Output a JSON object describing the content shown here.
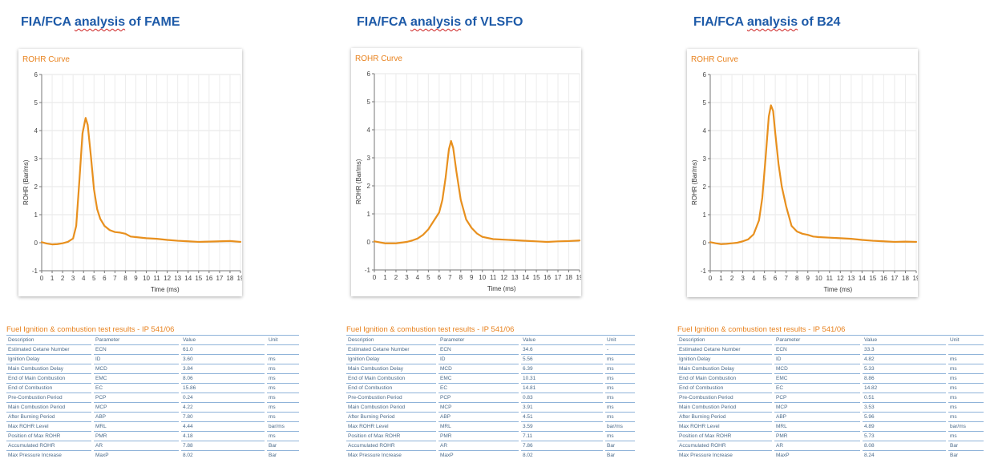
{
  "panels": [
    {
      "heading": {
        "pre": "FIA/FCA ",
        "squiggle": "analysis",
        "post": " of FAME"
      }
    },
    {
      "heading": {
        "pre": "FIA/FCA ",
        "squiggle": "analysis",
        "post": " of VLSFO"
      }
    },
    {
      "heading": {
        "pre": "FIA/FCA ",
        "squiggle": "analysis",
        "post": " of B24"
      }
    }
  ],
  "colors": {
    "curve": "#e8901e",
    "title": "#e8821e",
    "heading": "#1d5aa8",
    "table_text": "#4a6a8a",
    "table_rule": "#8fb3d9"
  },
  "chart_data": [
    {
      "type": "line",
      "title": "ROHR Curve",
      "xlabel": "Time (ms)",
      "ylabel": "ROHR (Bar/ms)",
      "xlim": [
        0,
        19
      ],
      "ylim": [
        -1,
        6
      ],
      "xticks": [
        "0",
        "1",
        "2",
        "3",
        "4",
        "5",
        "6",
        "7",
        "8",
        "9",
        "10",
        "11",
        "12",
        "13",
        "14",
        "15",
        "16",
        "17",
        "18",
        "19"
      ],
      "yticks": [
        "-1",
        "0",
        "1",
        "2",
        "3",
        "4",
        "5",
        "6"
      ],
      "grid": true,
      "x": [
        0,
        0.5,
        1,
        1.5,
        2,
        2.5,
        3,
        3.3,
        3.6,
        3.9,
        4.2,
        4.4,
        4.7,
        5,
        5.3,
        5.6,
        6,
        6.5,
        7,
        7.5,
        8,
        8.5,
        9,
        10,
        11,
        12,
        13,
        14,
        15,
        16,
        17,
        18,
        19
      ],
      "y": [
        0.02,
        -0.03,
        -0.06,
        -0.05,
        -0.02,
        0.03,
        0.15,
        0.6,
        2.2,
        3.9,
        4.45,
        4.2,
        3.1,
        1.9,
        1.2,
        0.85,
        0.6,
        0.45,
        0.38,
        0.36,
        0.32,
        0.22,
        0.2,
        0.16,
        0.14,
        0.1,
        0.07,
        0.05,
        0.03,
        0.04,
        0.05,
        0.06,
        0.03
      ]
    },
    {
      "type": "line",
      "title": "ROHR Curve",
      "xlabel": "Time (ms)",
      "ylabel": "ROHR (Bar/ms)",
      "xlim": [
        0,
        19
      ],
      "ylim": [
        -1,
        6
      ],
      "xticks": [
        "0",
        "1",
        "2",
        "3",
        "4",
        "5",
        "6",
        "7",
        "8",
        "9",
        "10",
        "11",
        "12",
        "13",
        "14",
        "15",
        "16",
        "17",
        "18",
        "19"
      ],
      "yticks": [
        "-1",
        "0",
        "1",
        "2",
        "3",
        "4",
        "5",
        "6"
      ],
      "grid": true,
      "x": [
        0,
        1,
        2,
        3,
        3.5,
        4,
        4.5,
        5,
        5.5,
        6,
        6.3,
        6.6,
        6.9,
        7.1,
        7.3,
        7.6,
        8,
        8.5,
        9,
        9.5,
        10,
        11,
        12,
        13,
        14,
        15,
        16,
        17,
        18,
        19
      ],
      "y": [
        0.02,
        -0.05,
        -0.05,
        0.0,
        0.05,
        0.12,
        0.25,
        0.45,
        0.75,
        1.05,
        1.5,
        2.3,
        3.3,
        3.6,
        3.35,
        2.5,
        1.5,
        0.8,
        0.5,
        0.3,
        0.18,
        0.1,
        0.08,
        0.06,
        0.04,
        0.02,
        0.0,
        0.02,
        0.03,
        0.05
      ]
    },
    {
      "type": "line",
      "title": "ROHR Curve",
      "xlabel": "Time (ms)",
      "ylabel": "ROHR (Bar/ms)",
      "xlim": [
        0,
        19
      ],
      "ylim": [
        -1,
        6
      ],
      "xticks": [
        "0",
        "1",
        "2",
        "3",
        "4",
        "5",
        "6",
        "7",
        "8",
        "9",
        "10",
        "11",
        "12",
        "13",
        "14",
        "15",
        "16",
        "17",
        "18",
        "19"
      ],
      "yticks": [
        "-1",
        "0",
        "1",
        "2",
        "3",
        "4",
        "5",
        "6"
      ],
      "grid": true,
      "x": [
        0,
        0.5,
        1,
        1.5,
        2,
        2.5,
        3,
        3.5,
        4,
        4.5,
        4.8,
        5.1,
        5.4,
        5.6,
        5.8,
        6,
        6.3,
        6.6,
        7,
        7.5,
        8,
        8.5,
        9,
        9.5,
        10,
        11,
        12,
        13,
        14,
        15,
        16,
        17,
        18,
        19
      ],
      "y": [
        0.02,
        -0.02,
        -0.05,
        -0.04,
        -0.02,
        0.0,
        0.05,
        0.12,
        0.3,
        0.8,
        1.6,
        3.0,
        4.5,
        4.9,
        4.7,
        3.9,
        2.8,
        2.0,
        1.3,
        0.6,
        0.4,
        0.32,
        0.28,
        0.22,
        0.2,
        0.18,
        0.16,
        0.14,
        0.1,
        0.07,
        0.05,
        0.03,
        0.04,
        0.03
      ]
    }
  ],
  "tables": [
    {
      "title": "Fuel Ignition & combustion test results - IP 541/06",
      "headers": [
        "Description",
        "Parameter",
        "Value",
        "Unit"
      ],
      "rows": [
        [
          "Estimated Cetane Number",
          "ECN",
          "61.0",
          ""
        ],
        [
          "Ignition Delay",
          "ID",
          "3.60",
          "ms"
        ],
        [
          "Main Combustion Delay",
          "MCD",
          "3.84",
          "ms"
        ],
        [
          "End of Main Combustion",
          "EMC",
          "8.06",
          "ms"
        ],
        [
          "End of Combustion",
          "EC",
          "15.86",
          "ms"
        ],
        [
          "Pre-Combustion Period",
          "PCP",
          "0.24",
          "ms"
        ],
        [
          "Main Combustion Period",
          "MCP",
          "4.22",
          "ms"
        ],
        [
          "After Burning Period",
          "ABP",
          "7.80",
          "ms"
        ],
        [
          "Max ROHR Level",
          "MRL",
          "4.44",
          "bar/ms"
        ],
        [
          "Position of Max ROHR",
          "PMR",
          "4.18",
          "ms"
        ],
        [
          "Accumulated ROHR",
          "AR",
          "7.88",
          "Bar"
        ],
        [
          "Max Pressure Increase",
          "MaxP",
          "8.02",
          "Bar"
        ]
      ]
    },
    {
      "title": "Fuel Ignition & combustion test results - IP 541/06",
      "headers": [
        "Description",
        "Parameter",
        "Value",
        "Unit"
      ],
      "rows": [
        [
          "Estimated Cetane Number",
          "ECN",
          "34.6",
          "-"
        ],
        [
          "Ignition Delay",
          "ID",
          "5.56",
          "ms"
        ],
        [
          "Main Combustion Delay",
          "MCD",
          "6.39",
          "ms"
        ],
        [
          "End of Main Combustion",
          "EMC",
          "10.31",
          "ms"
        ],
        [
          "End of Combustion",
          "EC",
          "14.81",
          "ms"
        ],
        [
          "Pre-Combustion Period",
          "PCP",
          "0.83",
          "ms"
        ],
        [
          "Main Combustion Period",
          "MCP",
          "3.91",
          "ms"
        ],
        [
          "After Burning Period",
          "ABP",
          "4.51",
          "ms"
        ],
        [
          "Max ROHR Level",
          "MRL",
          "3.59",
          "bar/ms"
        ],
        [
          "Position of Max ROHR",
          "PMR",
          "7.11",
          "ms"
        ],
        [
          "Accumulated ROHR",
          "AR",
          "7.86",
          "Bar"
        ],
        [
          "Max Pressure Increase",
          "MaxP",
          "8.02",
          "Bar"
        ]
      ]
    },
    {
      "title": "Fuel Ignition & combustion test results - IP 541/06",
      "headers": [
        "Description",
        "Parameter",
        "Value",
        "Unit"
      ],
      "rows": [
        [
          "Estimated Cetane Number",
          "ECN",
          "33.3",
          ""
        ],
        [
          "Ignition Delay",
          "ID",
          "4.82",
          "ms"
        ],
        [
          "Main Combustion Delay",
          "MCD",
          "5.33",
          "ms"
        ],
        [
          "End of Main Combustion",
          "EMC",
          "8.86",
          "ms"
        ],
        [
          "End of Combustion",
          "EC",
          "14.82",
          "ms"
        ],
        [
          "Pre-Combustion Period",
          "PCP",
          "0.51",
          "ms"
        ],
        [
          "Main Combustion Period",
          "MCP",
          "3.53",
          "ms"
        ],
        [
          "After Burning Period",
          "ABP",
          "5.96",
          "ms"
        ],
        [
          "Max ROHR Level",
          "MRL",
          "4.89",
          "bar/ms"
        ],
        [
          "Position of Max ROHR",
          "PMR",
          "5.73",
          "ms"
        ],
        [
          "Accumulated ROHR",
          "AR",
          "8.08",
          "Bar"
        ],
        [
          "Max Pressure Increase",
          "MaxP",
          "8.24",
          "Bar"
        ]
      ]
    }
  ]
}
